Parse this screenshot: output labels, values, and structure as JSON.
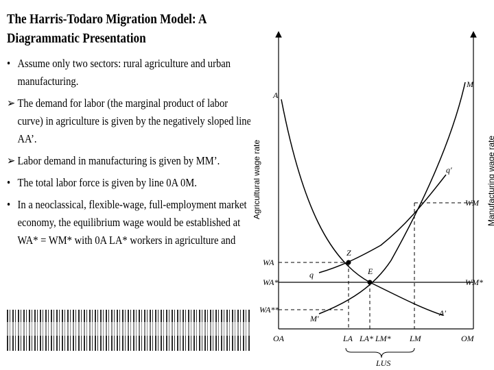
{
  "slide": {
    "title": "The Harris-Todaro Migration Model: A Diagrammatic Presentation",
    "bullets": [
      {
        "marker": "•",
        "text": "Assume only two sectors: rural agriculture and urban manufacturing."
      },
      {
        "marker": "➢",
        "text": "The demand for labor (the marginal product of labor curve) in agriculture is given by the negatively sloped line AA’."
      },
      {
        "marker": "➢",
        "text": "Labor demand in manufacturing is given by MM’."
      },
      {
        "marker": "•",
        "text": "The total labor force is given by line 0A 0M."
      },
      {
        "marker": "•",
        "text": "In a neoclassical, flexible-wage, full-employment market economy, the equilibrium wage would be established at WA* = WM* with 0A LA* workers in agriculture and"
      }
    ]
  },
  "diagram": {
    "axis_titles": {
      "left": "Agricultural wage rate",
      "right": "Manufacturing wage rate"
    },
    "curve_labels": {
      "A": "A",
      "A_prime": "A′",
      "M": "M",
      "M_prime": "M′",
      "q": "q",
      "q_prime": "q′"
    },
    "point_labels": {
      "Z": "Z",
      "E": "E"
    },
    "left_ticks": {
      "WA": "WA",
      "WA_star": "WA*",
      "WA_2star": "WA**"
    },
    "right_ticks": {
      "WM": "WM",
      "WM_star": "WM*"
    },
    "bottom_labels": {
      "OA": "OA",
      "LA": "LA",
      "LA_star_LM_star": "LA* LM*",
      "LM": "LM",
      "OM": "OM",
      "LUS": "LUS"
    }
  }
}
